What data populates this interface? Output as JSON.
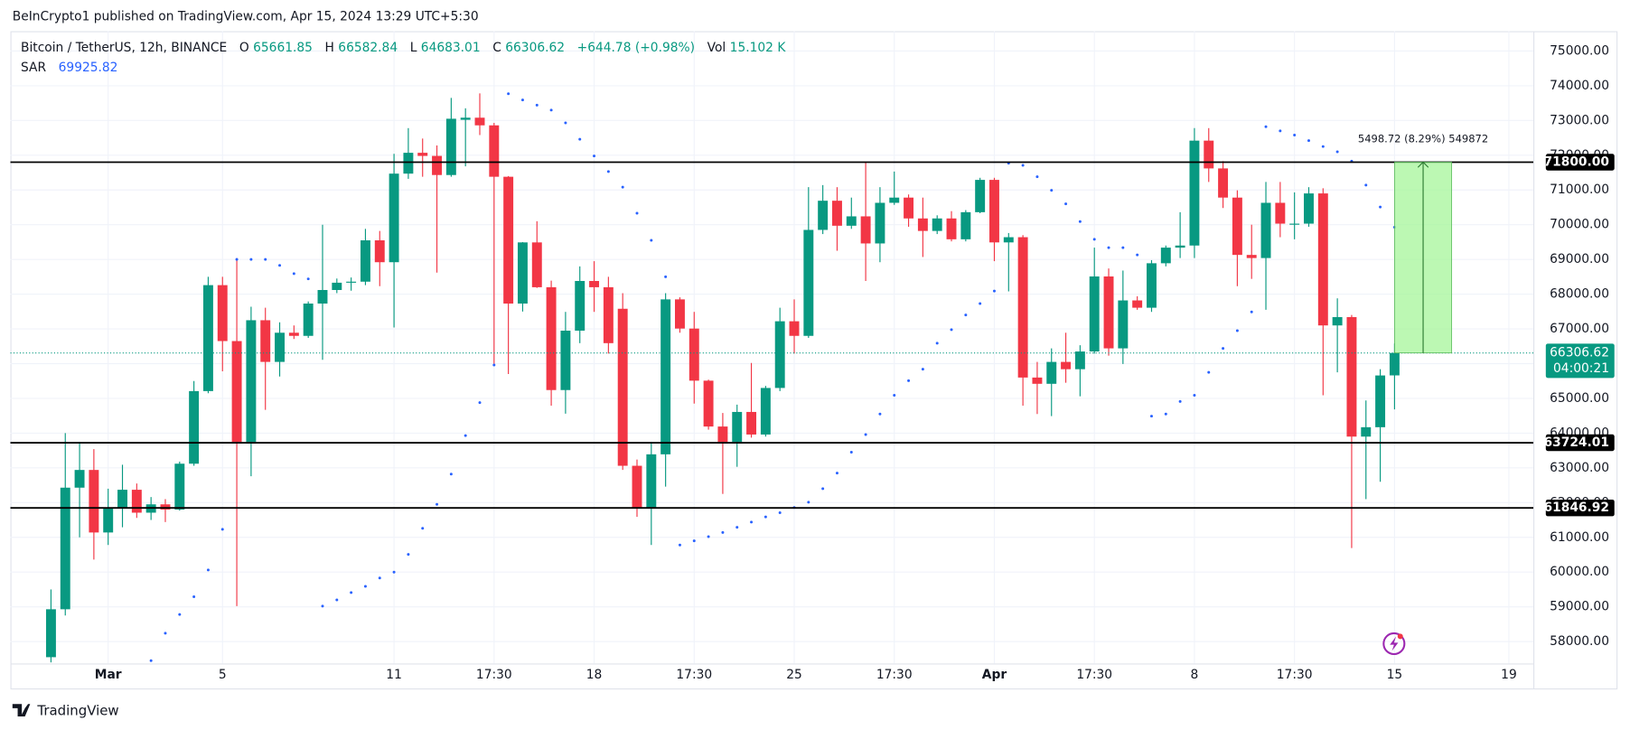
{
  "attribution": "BeInCrypto1 published on TradingView.com, Apr 15, 2024 13:29 UTC+5:30",
  "brand": "TradingView",
  "chart_data": {
    "type": "candlestick",
    "title": "Bitcoin / TetherUS, 12h, BINANCE",
    "ohlc_labels": [
      "O",
      "H",
      "L",
      "C"
    ],
    "change": "+644.78 (+0.98%)",
    "volume_label": "Vol",
    "volume": "15.102 K",
    "up_color": "#089981",
    "down_color": "#f23645",
    "categories": [
      null,
      null,
      null,
      null,
      null,
      null,
      null,
      null,
      null,
      null,
      null,
      null,
      null,
      null,
      null,
      null,
      null,
      null,
      null,
      null,
      null,
      null,
      null,
      null,
      null,
      null,
      null,
      null,
      null,
      null,
      null,
      null,
      null,
      null,
      null,
      null,
      null,
      null,
      null,
      null,
      null,
      null,
      null,
      null,
      null,
      null,
      null,
      null,
      null,
      null,
      null,
      null,
      null,
      null,
      null,
      null,
      null,
      null,
      null,
      null,
      null,
      null,
      null,
      null,
      null,
      null,
      null,
      null,
      null,
      null,
      null,
      null,
      null,
      null,
      null,
      null,
      null,
      null,
      null,
      null,
      null,
      null,
      null,
      null,
      null,
      null,
      null,
      null,
      null,
      null,
      null,
      null,
      null,
      null,
      null
    ],
    "open": [
      57550,
      58930,
      62430,
      62940,
      61140,
      61860,
      62370,
      61710,
      61950,
      61800,
      63120,
      65210,
      68260,
      66650,
      63750,
      67250,
      66050,
      66890,
      66800,
      67730,
      68120,
      68330,
      68360,
      69550,
      68920,
      71470,
      72070,
      71980,
      71430,
      73020,
      73080,
      72860,
      71380,
      67730,
      69490,
      68200,
      65240,
      66950,
      68380,
      68200,
      67580,
      63060,
      61860,
      63390,
      67850,
      67010,
      65510,
      64190,
      63750,
      64610,
      63960,
      65300,
      67220,
      66800,
      69850,
      70690,
      69970,
      70240,
      69460,
      70630,
      70780,
      70180,
      69820,
      70180,
      69580,
      70360,
      71290,
      69490,
      69640,
      65600,
      65420,
      66050,
      65840,
      66350,
      68510,
      66440,
      67820,
      67610,
      68890,
      69340,
      69400,
      72420,
      71620,
      70780,
      69130,
      69040,
      70630,
      70000,
      70030,
      70900,
      67100,
      67340,
      63900,
      64170,
      65661.85
    ],
    "high": [
      59500,
      64000,
      63750,
      63540,
      62400,
      63090,
      62550,
      62160,
      62100,
      63180,
      65500,
      68500,
      68500,
      69040,
      67640,
      67610,
      67190,
      67100,
      67790,
      70000,
      68450,
      68480,
      69880,
      69820,
      72040,
      72780,
      72480,
      72280,
      73650,
      73350,
      73780,
      72930,
      71400,
      69500,
      70100,
      68390,
      67490,
      68800,
      68950,
      68500,
      68030,
      63240,
      63750,
      68030,
      67910,
      67490,
      65540,
      64580,
      64820,
      66020,
      65360,
      67610,
      67850,
      71080,
      71140,
      71080,
      70780,
      71800,
      71080,
      71530,
      70870,
      70780,
      70270,
      70390,
      70420,
      71350,
      71350,
      69760,
      69700,
      66050,
      66440,
      66890,
      66530,
      69340,
      68740,
      68680,
      67940,
      68980,
      69400,
      70360,
      72780,
      72780,
      71830,
      70990,
      70000,
      71230,
      71230,
      70930,
      71080,
      71050,
      67880,
      67400,
      64940,
      65840,
      66582.84
    ],
    "low": [
      57400,
      58750,
      61000,
      60360,
      60780,
      61290,
      61560,
      61500,
      61440,
      61770,
      63060,
      65150,
      65780,
      59020,
      62760,
      64670,
      65630,
      66710,
      66740,
      66110,
      68030,
      68100,
      68260,
      68230,
      67040,
      71320,
      71380,
      68620,
      71380,
      71680,
      72580,
      66000,
      65700,
      67500,
      68180,
      64790,
      64560,
      66590,
      67490,
      66290,
      62940,
      61590,
      60780,
      62460,
      66890,
      64850,
      64100,
      62250,
      63030,
      63870,
      63900,
      65210,
      66290,
      66740,
      69730,
      69250,
      69880,
      68380,
      68920,
      70570,
      69940,
      69070,
      69730,
      69520,
      69520,
      70330,
      68950,
      68080,
      64790,
      64550,
      64490,
      65450,
      65060,
      66290,
      66230,
      65990,
      67550,
      67490,
      68800,
      69040,
      69040,
      71230,
      70480,
      68230,
      68440,
      67550,
      69640,
      69580,
      69940,
      65090,
      65750,
      60690,
      62100,
      62600,
      64683.01
    ],
    "close": [
      58930,
      62430,
      62940,
      61140,
      61860,
      62370,
      61710,
      61950,
      61800,
      63120,
      65210,
      68260,
      66650,
      63750,
      67250,
      66050,
      66890,
      66800,
      67730,
      68120,
      68330,
      68360,
      69550,
      68920,
      71470,
      72070,
      71980,
      71430,
      73050,
      73080,
      72860,
      71380,
      67730,
      69490,
      68200,
      65240,
      66950,
      68380,
      68200,
      66590,
      63060,
      61860,
      63390,
      67850,
      67010,
      65510,
      64190,
      63750,
      64610,
      63960,
      65300,
      67220,
      66800,
      69850,
      70690,
      69970,
      70240,
      69460,
      70630,
      70780,
      70180,
      69820,
      70180,
      69580,
      70360,
      71290,
      69490,
      69640,
      65600,
      65420,
      66050,
      65840,
      66350,
      68510,
      66440,
      67820,
      67610,
      68890,
      69340,
      69400,
      72420,
      71620,
      70780,
      69130,
      69040,
      70630,
      70030,
      70030,
      70900,
      67100,
      67340,
      63900,
      64170,
      65660,
      66306.62
    ],
    "sar": {
      "name": "SAR",
      "color": "#2962ff",
      "values": [
        null,
        null,
        null,
        null,
        null,
        null,
        null,
        57450,
        58240,
        58780,
        59290,
        60060,
        61230,
        69000,
        69000,
        69000,
        68830,
        68590,
        68440,
        59020,
        59200,
        59410,
        59590,
        59830,
        60000,
        60510,
        61260,
        61950,
        62820,
        63930,
        64880,
        65960,
        73770,
        73590,
        73440,
        73300,
        72930,
        72460,
        71980,
        71530,
        71080,
        70330,
        69550,
        68500,
        60780,
        60900,
        61020,
        61140,
        61290,
        61440,
        61590,
        61710,
        61860,
        62010,
        62400,
        62850,
        63450,
        63960,
        64550,
        65090,
        65510,
        65840,
        66590,
        66980,
        67400,
        67730,
        68090,
        71770,
        71710,
        71380,
        70990,
        70600,
        70090,
        69580,
        69340,
        69340,
        69130,
        64490,
        64550,
        64910,
        65090,
        65750,
        66440,
        66950,
        67490,
        72820,
        72700,
        72580,
        72420,
        72250,
        72100,
        71830,
        71140,
        70510,
        69925.82
      ]
    },
    "levels": [
      {
        "value": 71800,
        "label": "71800.00"
      },
      63724.01,
      61846.92
    ],
    "countdown": "04:00:21",
    "measure_label": "5498.72 (8.29%) 549872",
    "ylim": [
      57370,
      75570
    ],
    "yticks": [
      {
        "value": 58000,
        "label": "58000.00"
      },
      {
        "value": 59000,
        "label": "59000.00"
      },
      {
        "value": 60000,
        "label": "60000.00"
      },
      {
        "value": 61000,
        "label": "61000.00"
      },
      {
        "value": 62000,
        "label": "62000.00"
      },
      {
        "value": 63000,
        "label": "63000.00"
      },
      {
        "value": 64000,
        "label": "64000.00"
      },
      {
        "value": 65000,
        "label": "65000.00"
      },
      {
        "value": 66000,
        "label": "66000.00"
      },
      {
        "value": 67000,
        "label": "67000.00"
      },
      {
        "value": 68000,
        "label": "68000.00"
      },
      {
        "value": 69000,
        "label": "69000.00"
      },
      {
        "value": 70000,
        "label": "70000.00"
      },
      {
        "value": 71000,
        "label": "71000.00"
      },
      {
        "value": 72000,
        "label": "72000.00"
      },
      {
        "value": 73000,
        "label": "73000.00"
      },
      {
        "value": 74000,
        "label": "74000.00"
      },
      {
        "value": 75000,
        "label": "75000.00"
      }
    ],
    "xlim": [
      -2.84,
      103.71
    ],
    "xticks": [
      {
        "value": 4,
        "label": "Mar"
      },
      {
        "value": 12,
        "label": "5"
      },
      {
        "value": 24,
        "label": "11"
      },
      {
        "value": 31,
        "label": "17:30"
      },
      {
        "value": 38,
        "label": "18"
      },
      {
        "value": 45,
        "label": "17:30"
      },
      {
        "value": 52,
        "label": "25"
      },
      {
        "value": 59,
        "label": "17:30"
      },
      {
        "value": 66,
        "label": "Apr"
      },
      {
        "value": 73,
        "label": "17:30"
      },
      {
        "value": 80,
        "label": "8"
      },
      {
        "value": 87,
        "label": "17:30"
      },
      {
        "value": 94,
        "label": "15"
      },
      {
        "value": 102,
        "label": "19"
      }
    ],
    "grid": true
  }
}
